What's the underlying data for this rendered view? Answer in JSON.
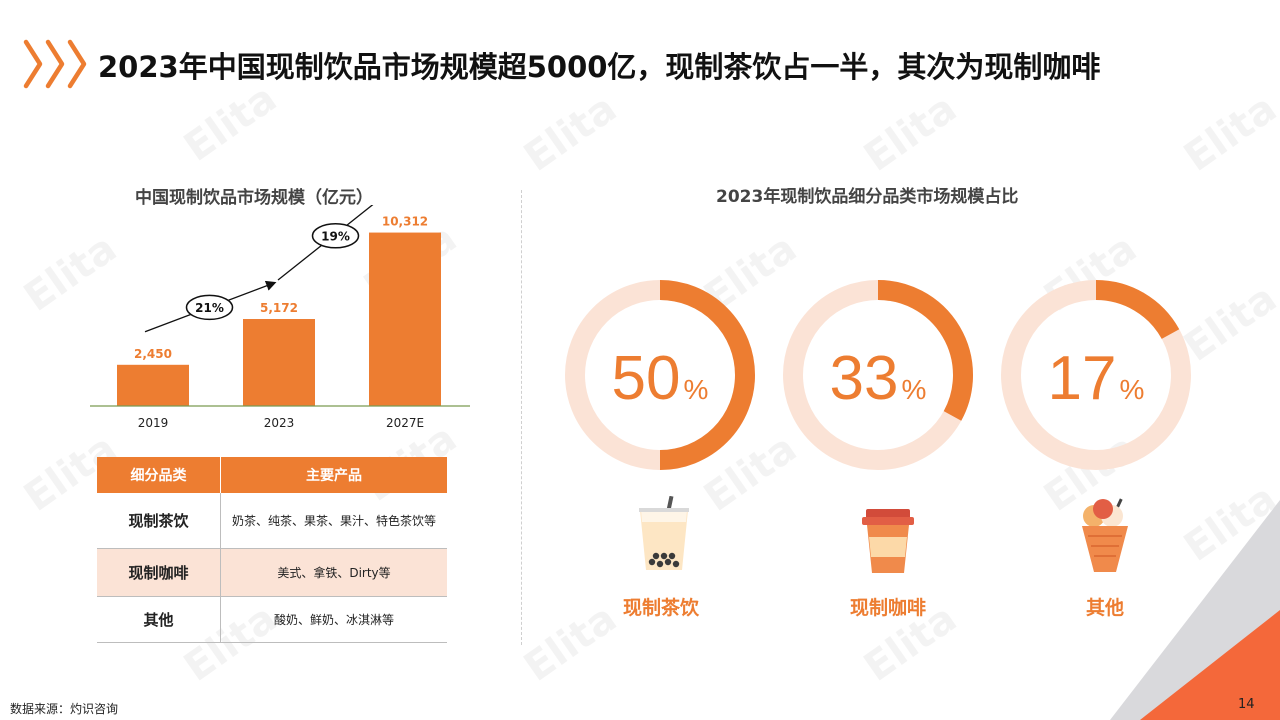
{
  "page": {
    "title": "2023年中国现制饮品市场规模超5000亿，现制茶饮占一半，其次为现制咖啡",
    "footnote": "数据来源：灼识咨询",
    "page_number": "14",
    "watermark": "Elita",
    "accent_color": "#ed7d31"
  },
  "chart_data": [
    {
      "type": "bar",
      "title": "中国现制饮品市场规模（亿元）",
      "categories": [
        "2019",
        "2023",
        "2027E"
      ],
      "values": [
        2450,
        5172,
        10312
      ],
      "value_labels": [
        "2,450",
        "5,172",
        "10,312"
      ],
      "growth_annotations": [
        "21%",
        "19%"
      ],
      "ylim": [
        0,
        11000
      ],
      "color": "#ed7d31",
      "grid": false
    },
    {
      "type": "pie",
      "title": "2023年现制饮品细分品类市场规模占比",
      "categories": [
        "现制茶饮",
        "现制咖啡",
        "其他"
      ],
      "values": [
        50,
        33,
        17
      ],
      "value_labels": [
        "50",
        "33",
        "17"
      ],
      "unit": "%",
      "color": "#ed7d31",
      "track_color": "#fbe3d6"
    }
  ],
  "table": {
    "headers": [
      "细分品类",
      "主要产品"
    ],
    "rows": [
      {
        "category": "现制茶饮",
        "products": "奶茶、纯茶、果茶、果汁、特色茶饮等"
      },
      {
        "category": "现制咖啡",
        "products": "美式、拿铁、Dirty等"
      },
      {
        "category": "其他",
        "products": "酸奶、鲜奶、冰淇淋等"
      }
    ]
  },
  "icons": [
    "bubble-tea-icon",
    "coffee-cup-icon",
    "ice-cream-icon"
  ]
}
